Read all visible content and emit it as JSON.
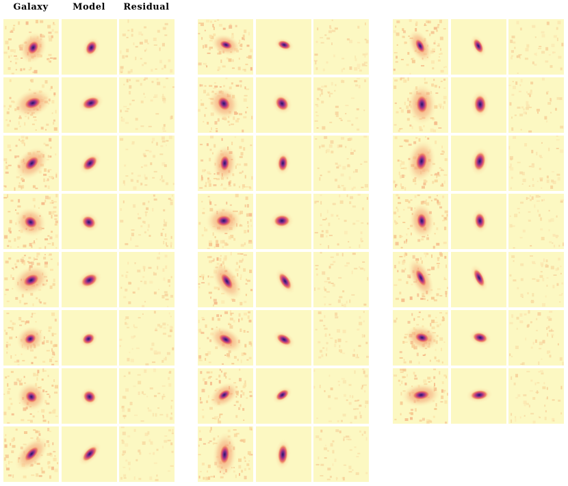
{
  "header": {
    "columns": [
      "Galaxy",
      "Model",
      "Residual"
    ]
  }
}
